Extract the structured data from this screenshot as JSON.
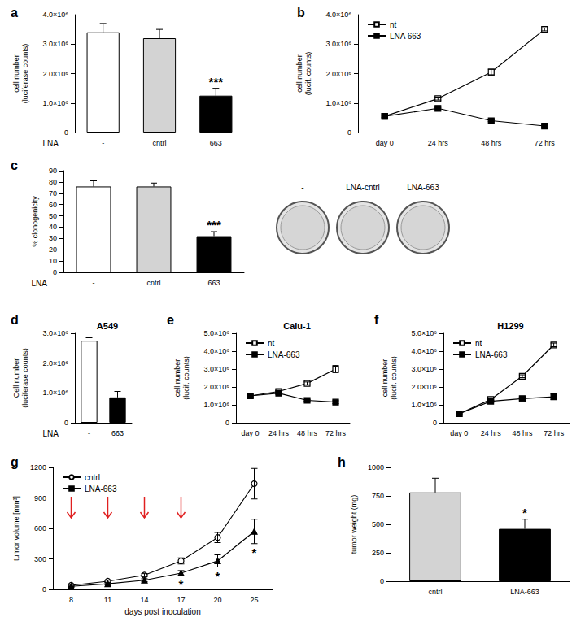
{
  "chart_data": [
    {
      "panel": "a",
      "type": "bar",
      "categories": [
        "-",
        "cntrl",
        "663"
      ],
      "values": [
        3400000,
        3200000,
        1250000
      ],
      "errors": [
        300000,
        300000,
        250000
      ],
      "significance": [
        null,
        null,
        "***"
      ],
      "colors": [
        "#ffffff",
        "#d3d3d3",
        "#000000"
      ],
      "x_label": "LNA",
      "y_label": "cell number\n(luciferase counts)",
      "ylim": [
        0,
        4000000
      ],
      "yticks": [
        0,
        {
          "value": 1000000,
          "label": "1.0×10⁶"
        },
        {
          "value": 2000000,
          "label": "2.0×10⁶"
        },
        {
          "value": 3000000,
          "label": "3.0×10⁶"
        },
        {
          "value": 4000000,
          "label": "4.0×10⁶"
        }
      ],
      "grid": false
    },
    {
      "panel": "b",
      "type": "line",
      "categories": [
        "day 0",
        "24 hrs",
        "48 hrs",
        "72 hrs"
      ],
      "series": [
        {
          "name": "nt",
          "color": "#000000",
          "marker": "open_square",
          "values": [
            550000,
            1150000,
            2050000,
            3500000
          ],
          "errors": [
            50000,
            50000,
            100000,
            50000
          ]
        },
        {
          "name": "LNA 663",
          "color": "#000000",
          "marker": "square",
          "values": [
            550000,
            820000,
            400000,
            220000
          ],
          "errors": [
            30000,
            30000,
            30000,
            30000
          ]
        }
      ],
      "legend": "upper left",
      "y_label": "cell number\n(lucif. counts)",
      "ylim": [
        0,
        4000000
      ],
      "yticks": [
        0,
        {
          "value": 1000000,
          "label": "1.0×10⁶"
        },
        {
          "value": 2000000,
          "label": "2.0×10⁶"
        },
        {
          "value": 3000000,
          "label": "3.0×10⁶"
        },
        {
          "value": 4000000,
          "label": "4.0×10⁶"
        }
      ],
      "grid": false
    },
    {
      "panel": "c",
      "type": "bar",
      "categories": [
        "-",
        "cntrl",
        "663"
      ],
      "values": [
        76,
        76,
        32
      ],
      "errors": [
        5,
        3,
        4
      ],
      "significance": [
        null,
        null,
        "***"
      ],
      "colors": [
        "#ffffff",
        "#d3d3d3",
        "#000000"
      ],
      "x_label": "LNA",
      "y_label": "% clonogenicity",
      "ylim": [
        0,
        90
      ],
      "yticks": [
        0,
        10,
        20,
        30,
        40,
        50,
        60,
        70,
        80,
        90
      ],
      "plate_labels": [
        "-",
        "LNA-cntrl",
        "LNA-663"
      ],
      "grid": false
    },
    {
      "panel": "d",
      "type": "bar",
      "title": "A549",
      "categories": [
        "-",
        "663"
      ],
      "values": [
        2750000,
        850000
      ],
      "errors": [
        100000,
        200000
      ],
      "colors": [
        "#ffffff",
        "#000000"
      ],
      "x_label": "LNA",
      "y_label": "Cell number\n(luciferase counts)",
      "ylim": [
        0,
        3000000
      ],
      "yticks": [
        0,
        {
          "value": 1000000,
          "label": "1.0×10⁶"
        },
        {
          "value": 2000000,
          "label": "2.0×10⁶"
        },
        {
          "value": 3000000,
          "label": "3.0×10⁶"
        }
      ],
      "grid": false
    },
    {
      "panel": "e",
      "type": "line",
      "title": "Calu-1",
      "categories": [
        "day 0",
        "24 hrs",
        "48 hrs",
        "72 hrs"
      ],
      "series": [
        {
          "name": "nt",
          "color": "#000000",
          "marker": "open_square",
          "values": [
            1500000,
            1750000,
            2200000,
            3000000
          ],
          "errors": [
            50000,
            50000,
            80000,
            200000
          ]
        },
        {
          "name": "LNA-663",
          "color": "#000000",
          "marker": "square",
          "values": [
            1500000,
            1650000,
            1250000,
            1150000
          ],
          "errors": [
            50000,
            50000,
            50000,
            80000
          ]
        }
      ],
      "legend": "upper left",
      "y_label": "cell number\n(lucif. counts)",
      "ylim": [
        0,
        5000000
      ],
      "yticks": [
        0,
        {
          "value": 1000000,
          "label": "1.0×10⁶"
        },
        {
          "value": 2000000,
          "label": "2.0×10⁶"
        },
        {
          "value": 3000000,
          "label": "3.0×10⁶"
        },
        {
          "value": 4000000,
          "label": "4.0×10⁶"
        },
        {
          "value": 5000000,
          "label": "5.0×10⁶"
        }
      ],
      "grid": false
    },
    {
      "panel": "f",
      "type": "line",
      "title": "H1299",
      "categories": [
        "day 0",
        "24 hrs",
        "48 hrs",
        "72 hrs"
      ],
      "series": [
        {
          "name": "nt",
          "color": "#000000",
          "marker": "open_square",
          "values": [
            500000,
            1300000,
            2600000,
            4350000
          ],
          "errors": [
            50000,
            80000,
            80000,
            100000
          ]
        },
        {
          "name": "LNA-663",
          "color": "#000000",
          "marker": "square",
          "values": [
            500000,
            1200000,
            1350000,
            1450000
          ],
          "errors": [
            50000,
            50000,
            80000,
            150000
          ]
        }
      ],
      "legend": "upper left",
      "y_label": "cell number\n(lucif. counts)",
      "ylim": [
        0,
        5000000
      ],
      "yticks": [
        0,
        {
          "value": 1000000,
          "label": "1.0×10⁶"
        },
        {
          "value": 2000000,
          "label": "2.0×10⁶"
        },
        {
          "value": 3000000,
          "label": "3.0×10⁶"
        },
        {
          "value": 4000000,
          "label": "4.0×10⁶"
        },
        {
          "value": 5000000,
          "label": "5.0×10⁶"
        }
      ],
      "grid": false
    },
    {
      "panel": "g",
      "type": "line",
      "categories": [
        8,
        11,
        14,
        17,
        20,
        25
      ],
      "series": [
        {
          "name": "cntrl",
          "color": "#000000",
          "marker": "open_circle",
          "values": [
            40,
            80,
            140,
            280,
            510,
            1040
          ],
          "errors": [
            10,
            10,
            15,
            30,
            50,
            150
          ]
        },
        {
          "name": "LNA-663",
          "color": "#000000",
          "marker": "triangle",
          "values": [
            30,
            55,
            90,
            160,
            280,
            570
          ],
          "errors": [
            10,
            10,
            15,
            25,
            60,
            120
          ],
          "significance": [
            null,
            null,
            null,
            "*",
            "*",
            "*"
          ]
        }
      ],
      "arrows_x": [
        8,
        11,
        14,
        17
      ],
      "legend": "upper left",
      "x_label": "days post inoculation",
      "y_label": "tumor volume [mm³]",
      "ylim": [
        0,
        1200
      ],
      "yticks": [
        0,
        300,
        600,
        900,
        1200
      ],
      "grid": false
    },
    {
      "panel": "h",
      "type": "bar",
      "categories": [
        "cntrl",
        "LNA-663"
      ],
      "values": [
        780,
        460
      ],
      "errors": [
        125,
        85
      ],
      "significance": [
        null,
        "*"
      ],
      "colors": [
        "#d3d3d3",
        "#000000"
      ],
      "y_label": "tumor weight (mg)",
      "ylim": [
        0,
        1000
      ],
      "yticks": [
        0,
        250,
        500,
        750,
        1000
      ],
      "grid": false
    }
  ]
}
